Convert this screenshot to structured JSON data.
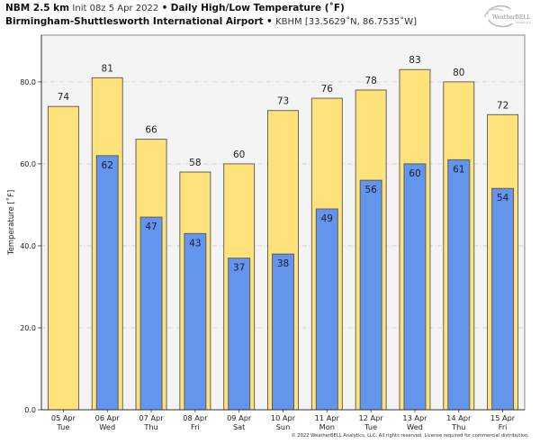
{
  "header": {
    "model": "NBM 2.5 km",
    "init": "Init 08z 5 Apr 2022",
    "separator": "•",
    "product": "Daily High/Low Temperature (˚F)",
    "station_name": "Birmingham-Shuttlesworth International Airport",
    "station_info": "KBHM [33.5629˚N, 86.7535˚W]"
  },
  "logo": {
    "text": "WeatherBELL",
    "subtext": "Analytics LLC"
  },
  "footer": {
    "copyright": "© 2022 WeatherBELL Analytics, LLC. All rights reserved. License required for commercial distribution."
  },
  "colors": {
    "high_bar": "#FFE37A",
    "low_bar": "#6495ED",
    "plot_bg": "#F4F4F4",
    "bar_edge": "#555555",
    "grid": "#CCCCCC"
  },
  "chart_data": {
    "type": "bar",
    "title": "Daily High/Low Temperature (˚F)",
    "xlabel": "",
    "ylabel": "Temperature [˚F]",
    "ylim": [
      0,
      91.4
    ],
    "yticks": [
      0,
      20,
      40,
      60,
      80
    ],
    "ytick_labels": [
      "0.0",
      "20.0",
      "40.0",
      "60.0",
      "80.0"
    ],
    "grid": true,
    "legend": "none",
    "categories": [
      "05 Apr",
      "06 Apr",
      "07 Apr",
      "08 Apr",
      "09 Apr",
      "10 Apr",
      "11 Apr",
      "12 Apr",
      "13 Apr",
      "14 Apr",
      "15 Apr"
    ],
    "weekdays": [
      "Tue",
      "Wed",
      "Thu",
      "Fri",
      "Sat",
      "Sun",
      "Mon",
      "Tue",
      "Wed",
      "Thu",
      "Fri"
    ],
    "series": [
      {
        "name": "High",
        "values": [
          74,
          81,
          66,
          58,
          60,
          73,
          76,
          78,
          83,
          80,
          72
        ]
      },
      {
        "name": "Low",
        "values": [
          null,
          62,
          47,
          43,
          37,
          38,
          49,
          56,
          60,
          61,
          54
        ]
      }
    ]
  }
}
